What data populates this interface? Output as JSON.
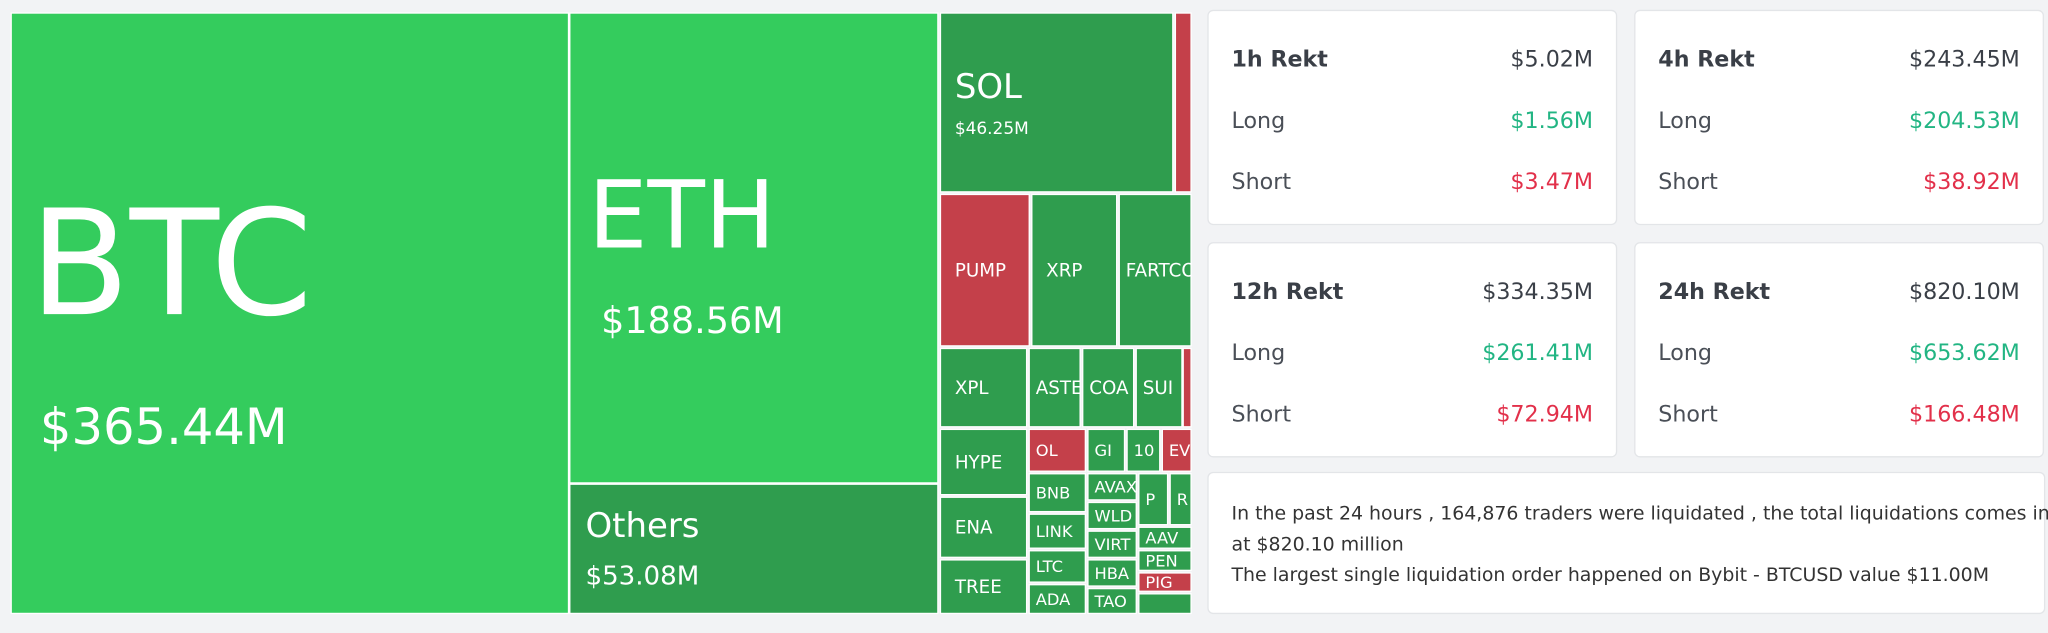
{
  "treemap": {
    "tiles": [
      {
        "label": "BTC",
        "value": "$365.44M",
        "color": "#34cc5d"
      },
      {
        "label": "ETH",
        "value": "$188.56M",
        "color": "#34cc5d"
      },
      {
        "label": "Others",
        "value": "$53.08M",
        "color": "#2f9d4e"
      },
      {
        "label": "SOL",
        "value": "$46.25M",
        "color": "#2f9d4e"
      },
      {
        "color": "#c4404a"
      },
      {
        "label": "PUMP",
        "color": "#c4404a"
      },
      {
        "label": "XRP",
        "color": "#2f9d4e"
      },
      {
        "label": "FARTCO",
        "color": "#2f9d4e"
      },
      {
        "label": "XPL",
        "color": "#2f9d4e"
      },
      {
        "label": "ASTE",
        "color": "#2f9d4e"
      },
      {
        "label": "COA",
        "color": "#2f9d4e"
      },
      {
        "label": "SUI",
        "color": "#2f9d4e"
      },
      {
        "color": "#c4404a"
      },
      {
        "label": "HYPE",
        "color": "#2f9d4e"
      },
      {
        "label": "OL",
        "color": "#c4404a"
      },
      {
        "label": "GI",
        "color": "#2f9d4e"
      },
      {
        "label": "10",
        "color": "#2f9d4e"
      },
      {
        "label": "EV",
        "color": "#c4404a"
      },
      {
        "label": "ENA",
        "color": "#2f9d4e"
      },
      {
        "label": "TREE",
        "color": "#2f9d4e"
      },
      {
        "label": "BNB",
        "color": "#2f9d4e"
      },
      {
        "label": "LINK",
        "color": "#2f9d4e"
      },
      {
        "label": "LTC",
        "color": "#2f9d4e"
      },
      {
        "label": "ADA",
        "color": "#2f9d4e"
      },
      {
        "label": "AVAX",
        "color": "#2f9d4e"
      },
      {
        "label": "WLD",
        "color": "#2f9d4e"
      },
      {
        "label": "VIRT",
        "color": "#2f9d4e"
      },
      {
        "label": "HBA",
        "color": "#2f9d4e"
      },
      {
        "label": "TAO",
        "color": "#2f9d4e"
      },
      {
        "label": "P",
        "color": "#2f9d4e"
      },
      {
        "label": "R",
        "color": "#2f9d4e"
      },
      {
        "label": "AAV",
        "color": "#2f9d4e"
      },
      {
        "label": "PEN",
        "color": "#2f9d4e"
      },
      {
        "label": "PIG",
        "color": "#c4404a"
      },
      {
        "color": "#2f9d4e"
      }
    ]
  },
  "stats": [
    {
      "title": "1h Rekt",
      "total": "$5.02M",
      "long_label": "Long",
      "long": "$1.56M",
      "short_label": "Short",
      "short": "$3.47M"
    },
    {
      "title": "4h Rekt",
      "total": "$243.45M",
      "long_label": "Long",
      "long": "$204.53M",
      "short_label": "Short",
      "short": "$38.92M"
    },
    {
      "title": "12h Rekt",
      "total": "$334.35M",
      "long_label": "Long",
      "long": "$261.41M",
      "short_label": "Short",
      "short": "$72.94M"
    },
    {
      "title": "24h Rekt",
      "total": "$820.10M",
      "long_label": "Long",
      "long": "$653.62M",
      "short_label": "Short",
      "short": "$166.48M"
    }
  ],
  "summary": {
    "lines": [
      "In the past 24 hours , 164,876 traders were liquidated , the total liquidations comes in",
      "at $820.10 million",
      "The largest single liquidation order happened on Bybit - BTCUSD value $11.00M"
    ]
  }
}
